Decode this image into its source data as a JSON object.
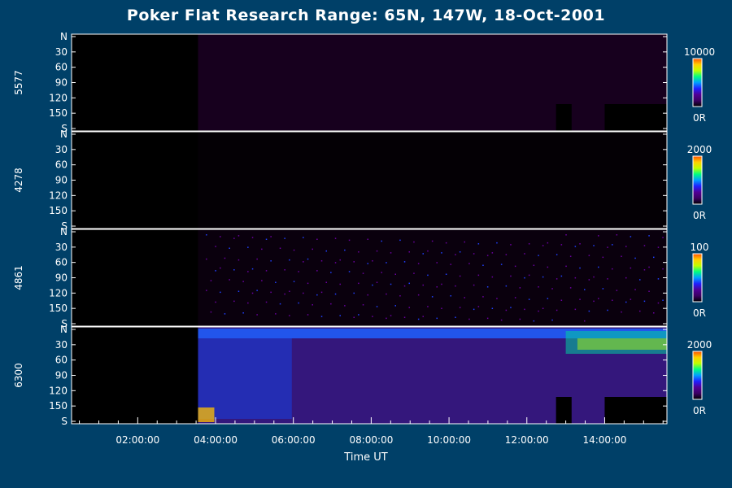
{
  "chart_data": {
    "type": "heatmap",
    "title": "Poker Flat Research Range: 65N, 147W, 18-Oct-2001",
    "xlabel": "Time UT",
    "x_ticks": [
      "02:00:00",
      "04:00:00",
      "06:00:00",
      "08:00:00",
      "10:00:00",
      "12:00:00",
      "14:00:00"
    ],
    "x_range_hours": [
      0.3,
      15.6
    ],
    "y_ticks": [
      "N",
      "30",
      "60",
      "90",
      "120",
      "150",
      "S"
    ],
    "y_range": [
      0,
      180
    ],
    "panels": [
      {
        "label": "5577",
        "scale_max": "10000",
        "scale_min": "0R",
        "data_start_hour": 3.55,
        "level": 0.12,
        "gaps": [
          [
            12.75,
            13.15
          ],
          [
            14.0,
            15.6
          ]
        ]
      },
      {
        "label": "4278",
        "scale_max": "2000",
        "scale_min": "0R",
        "data_start_hour": 3.55,
        "level": 0.02,
        "gaps": []
      },
      {
        "label": "4861",
        "scale_max": "100",
        "scale_min": "0R",
        "data_start_hour": 3.55,
        "level": 0.05,
        "gaps": []
      },
      {
        "label": "6300",
        "scale_max": "2000",
        "scale_min": "0R",
        "data_start_hour": 3.55,
        "level": 0.25,
        "gaps": [
          [
            12.75,
            13.15
          ],
          [
            14.0,
            15.6
          ]
        ]
      }
    ],
    "colorscale": [
      "#000000",
      "#3c0064",
      "#500096",
      "#2020ff",
      "#00a0ff",
      "#00ff80",
      "#c0ff00",
      "#ffd000",
      "#ff5000"
    ]
  }
}
